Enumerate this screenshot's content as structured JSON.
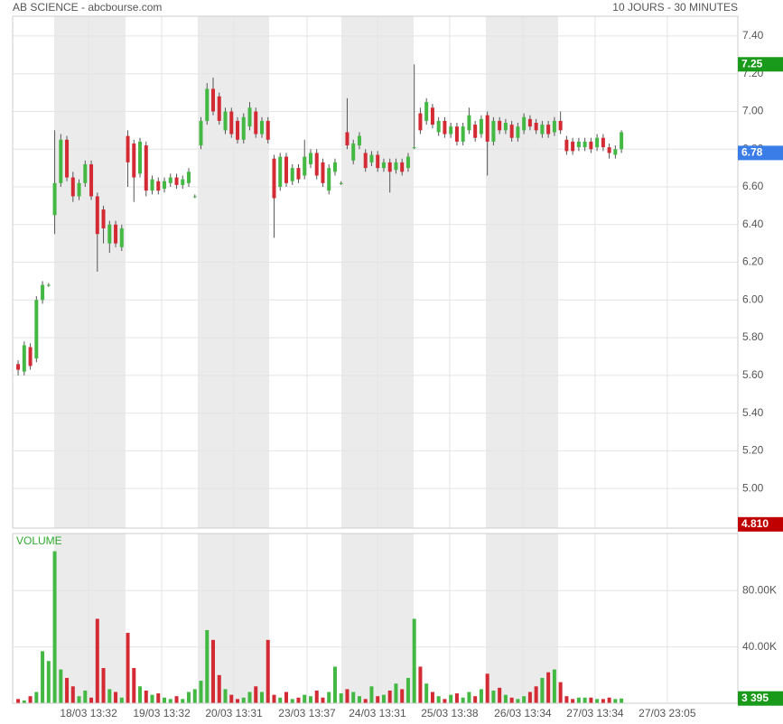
{
  "header": {
    "title": "AB SCIENCE - abcbourse.com",
    "period": "10 JOURS - 30 MINUTES"
  },
  "chart_data": [
    {
      "type": "candlestick",
      "up_color": "#43b943",
      "down_color": "#d32a33",
      "grid": true,
      "x": [
        0,
        1,
        2,
        3,
        4,
        5,
        6,
        7,
        8,
        9,
        10,
        11,
        12,
        13,
        14,
        15,
        16,
        17,
        18,
        19,
        20,
        21,
        22,
        23,
        24,
        25,
        26,
        27,
        28,
        29,
        30,
        31,
        32,
        33,
        34,
        35,
        36,
        37,
        38,
        39,
        40,
        41,
        42,
        43,
        44,
        45,
        46,
        47,
        48,
        49,
        50,
        51,
        52,
        53,
        54,
        55,
        56,
        57,
        58,
        59,
        60,
        61,
        62,
        63,
        64,
        65,
        66,
        67,
        68,
        69,
        70,
        71,
        72,
        73,
        74,
        75,
        76,
        77,
        78,
        79,
        80,
        81,
        82,
        83,
        84,
        85,
        86,
        87,
        88,
        89,
        90,
        91,
        92,
        93,
        94,
        95,
        96,
        97,
        98,
        99
      ],
      "open": [
        5.66,
        5.62,
        5.75,
        5.69,
        6.0,
        6.08,
        6.45,
        6.62,
        6.85,
        6.65,
        6.55,
        6.62,
        6.72,
        6.55,
        6.48,
        6.3,
        6.4,
        6.28,
        6.87,
        6.83,
        6.67,
        6.82,
        6.58,
        6.63,
        6.59,
        6.62,
        6.65,
        6.61,
        6.62,
        6.55,
        6.82,
        6.95,
        7.12,
        7.08,
        6.9,
        7.0,
        6.95,
        6.85,
        6.92,
        7.0,
        6.88,
        6.95,
        6.75,
        6.6,
        6.76,
        6.63,
        6.7,
        6.66,
        6.72,
        6.78,
        6.73,
        6.58,
        6.68,
        6.62,
        6.89,
        6.74,
        6.82,
        6.78,
        6.73,
        6.77,
        6.7,
        6.73,
        6.69,
        6.73,
        6.7,
        6.81,
        6.99,
        6.95,
        7.02,
        6.89,
        6.95,
        6.88,
        6.92,
        6.84,
        6.9,
        6.93,
        6.88,
        6.98,
        6.84,
        6.95,
        6.9,
        6.93,
        6.86,
        6.9,
        6.96,
        6.94,
        6.88,
        6.93,
        6.89,
        6.95,
        6.85,
        6.84,
        6.81,
        6.81,
        6.84,
        6.81,
        6.86,
        6.81,
        6.77,
        6.8
      ],
      "high": [
        5.68,
        5.78,
        5.77,
        6.02,
        6.1,
        6.09,
        6.9,
        6.88,
        6.87,
        6.68,
        6.64,
        6.74,
        6.74,
        6.57,
        6.5,
        6.42,
        6.42,
        6.4,
        6.9,
        6.85,
        6.86,
        6.84,
        6.66,
        6.65,
        6.65,
        6.67,
        6.67,
        6.66,
        6.7,
        6.56,
        6.97,
        7.15,
        7.18,
        7.1,
        7.02,
        7.02,
        6.97,
        6.99,
        7.05,
        7.02,
        6.97,
        6.97,
        6.77,
        6.78,
        6.78,
        6.72,
        6.72,
        6.85,
        6.8,
        6.8,
        6.75,
        6.72,
        6.75,
        6.63,
        7.07,
        6.85,
        6.89,
        6.8,
        6.79,
        6.79,
        6.75,
        6.75,
        6.75,
        6.75,
        6.78,
        7.25,
        7.02,
        7.07,
        7.04,
        6.97,
        6.97,
        6.94,
        6.94,
        6.94,
        7.02,
        6.95,
        6.98,
        7.0,
        6.97,
        6.97,
        6.96,
        6.95,
        6.94,
        6.99,
        6.98,
        6.96,
        6.95,
        6.95,
        6.97,
        7.0,
        6.87,
        6.86,
        6.86,
        6.86,
        6.86,
        6.88,
        6.88,
        6.83,
        6.82,
        6.9
      ],
      "low": [
        5.6,
        5.6,
        5.63,
        5.67,
        5.98,
        6.07,
        6.35,
        6.6,
        6.63,
        6.52,
        6.53,
        6.6,
        6.53,
        6.15,
        6.3,
        6.25,
        6.28,
        6.26,
        6.6,
        6.52,
        6.65,
        6.55,
        6.56,
        6.56,
        6.57,
        6.6,
        6.59,
        6.59,
        6.6,
        6.54,
        6.8,
        6.93,
        6.98,
        6.93,
        6.88,
        6.86,
        6.83,
        6.83,
        6.9,
        6.86,
        6.86,
        6.83,
        6.33,
        6.58,
        6.6,
        6.61,
        6.62,
        6.64,
        6.7,
        6.64,
        6.6,
        6.56,
        6.66,
        6.61,
        6.8,
        6.72,
        6.8,
        6.68,
        6.71,
        6.68,
        6.68,
        6.57,
        6.67,
        6.66,
        6.68,
        6.8,
        6.88,
        6.93,
        6.91,
        6.87,
        6.86,
        6.86,
        6.82,
        6.82,
        6.88,
        6.84,
        6.86,
        6.66,
        6.82,
        6.88,
        6.88,
        6.84,
        6.84,
        6.88,
        6.9,
        6.88,
        6.86,
        6.86,
        6.87,
        6.88,
        6.77,
        6.77,
        6.79,
        6.79,
        6.78,
        6.79,
        6.79,
        6.75,
        6.75,
        6.78
      ],
      "close": [
        5.63,
        5.76,
        5.65,
        6.0,
        6.08,
        6.08,
        6.62,
        6.85,
        6.65,
        6.55,
        6.62,
        6.72,
        6.55,
        6.35,
        6.38,
        6.4,
        6.3,
        6.38,
        6.73,
        6.65,
        6.84,
        6.58,
        6.64,
        6.58,
        6.63,
        6.65,
        6.61,
        6.64,
        6.68,
        6.55,
        6.95,
        7.12,
        7.0,
        6.95,
        7.0,
        6.88,
        6.85,
        6.97,
        7.02,
        6.88,
        6.95,
        6.85,
        6.54,
        6.76,
        6.62,
        6.7,
        6.64,
        6.76,
        6.78,
        6.66,
        6.62,
        6.7,
        6.73,
        6.62,
        6.82,
        6.83,
        6.87,
        6.7,
        6.77,
        6.7,
        6.73,
        6.68,
        6.73,
        6.68,
        6.76,
        6.81,
        6.9,
        7.05,
        6.93,
        6.95,
        6.88,
        6.92,
        6.84,
        6.92,
        6.98,
        6.86,
        6.96,
        6.84,
        6.95,
        6.9,
        6.94,
        6.86,
        6.92,
        6.97,
        6.92,
        6.9,
        6.93,
        6.88,
        6.95,
        6.9,
        6.79,
        6.79,
        6.84,
        6.84,
        6.8,
        6.86,
        6.81,
        6.78,
        6.8,
        6.89
      ],
      "xlim": [
        -0.9,
        118.1
      ],
      "xticks": [
        {
          "value": 11.56,
          "label": "18/03 13:32"
        },
        {
          "value": 23.56,
          "label": "19/03 13:32"
        },
        {
          "value": 35.41,
          "label": "20/03 13:31"
        },
        {
          "value": 47.41,
          "label": "23/03 13:37"
        },
        {
          "value": 58.96,
          "label": "24/03 13:31"
        },
        {
          "value": 70.81,
          "label": "25/03 13:38"
        },
        {
          "value": 82.81,
          "label": "26/03 13:34"
        },
        {
          "value": 94.67,
          "label": "27/03 13:34"
        },
        {
          "value": 106.52,
          "label": "27/03 23:05"
        }
      ],
      "ylim": [
        4.79,
        7.505
      ],
      "yticks": [
        {
          "value": 5.0,
          "label": "5.00"
        },
        {
          "value": 5.2,
          "label": "5.20"
        },
        {
          "value": 5.4,
          "label": "5.40"
        },
        {
          "value": 5.6,
          "label": "5.60"
        },
        {
          "value": 5.8,
          "label": "5.80"
        },
        {
          "value": 6.0,
          "label": "6.00"
        },
        {
          "value": 6.2,
          "label": "6.20"
        },
        {
          "value": 6.4,
          "label": "6.40"
        },
        {
          "value": 6.6,
          "label": "6.60"
        },
        {
          "value": 6.8,
          "label": "6.80"
        },
        {
          "value": 7.0,
          "label": "7.00"
        },
        {
          "value": 7.2,
          "label": "7.20"
        },
        {
          "value": 7.4,
          "label": "7.40"
        }
      ],
      "tags": [
        {
          "value": 7.25,
          "color": "#1a9a1a"
        },
        {
          "value": 6.78,
          "color": "#3b7de8"
        },
        {
          "value": 4.81,
          "label": "4.810",
          "color": "#c00000"
        }
      ]
    },
    {
      "type": "volume",
      "title": "VOLUME",
      "grid": true,
      "values": [
        3000,
        2000,
        5000,
        8000,
        37000,
        30000,
        108000,
        24000,
        18000,
        12000,
        5000,
        9000,
        4000,
        60000,
        25000,
        10000,
        8000,
        4000,
        50000,
        25000,
        12000,
        9000,
        6000,
        7000,
        4000,
        3000,
        5000,
        3000,
        8000,
        10000,
        16000,
        52000,
        45000,
        20000,
        10000,
        6000,
        3000,
        4000,
        8000,
        12000,
        8000,
        45000,
        6000,
        4000,
        8000,
        3000,
        4000,
        6000,
        5000,
        9000,
        4000,
        8000,
        26000,
        7000,
        10000,
        8000,
        5000,
        3000,
        12000,
        5000,
        6000,
        9000,
        14000,
        10000,
        18000,
        60000,
        26000,
        14000,
        8000,
        5000,
        3000,
        6000,
        7000,
        4000,
        8000,
        5000,
        10000,
        21000,
        9000,
        11000,
        6000,
        4000,
        3000,
        5000,
        8000,
        12000,
        18000,
        22000,
        24000,
        15000,
        5000,
        3000,
        4000,
        4000,
        4000,
        3000,
        3000,
        4000,
        3000,
        3395
      ],
      "ylim": [
        0,
        120600
      ],
      "yticks": [
        {
          "value": 40000,
          "label": "40.00K"
        },
        {
          "value": 80000,
          "label": "80.00K"
        }
      ],
      "tags": [
        {
          "value": 3395,
          "label": "3 395",
          "color": "#1a9a1a"
        }
      ]
    }
  ]
}
